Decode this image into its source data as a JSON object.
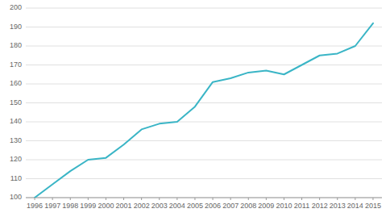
{
  "chart_data": {
    "type": "line",
    "x": [
      1996,
      1997,
      1998,
      1999,
      2000,
      2001,
      2002,
      2003,
      2004,
      2005,
      2006,
      2007,
      2008,
      2009,
      2010,
      2011,
      2012,
      2013,
      2014,
      2015
    ],
    "values": [
      100,
      107,
      114,
      120,
      121,
      128,
      136,
      139,
      140,
      148,
      161,
      163,
      166,
      167,
      165,
      170,
      175,
      176,
      180,
      192
    ],
    "color": "#3ab5c6",
    "xlim": [
      1995.5,
      2015.5
    ],
    "xticks": [
      1996,
      1997,
      1998,
      1999,
      2000,
      2001,
      2002,
      2003,
      2004,
      2005,
      2006,
      2007,
      2008,
      2009,
      2010,
      2011,
      2012,
      2013,
      2014,
      2015
    ],
    "ylim": [
      100,
      200
    ],
    "yticks": [
      100,
      110,
      120,
      130,
      140,
      150,
      160,
      170,
      180,
      190,
      200
    ],
    "grid": true
  }
}
